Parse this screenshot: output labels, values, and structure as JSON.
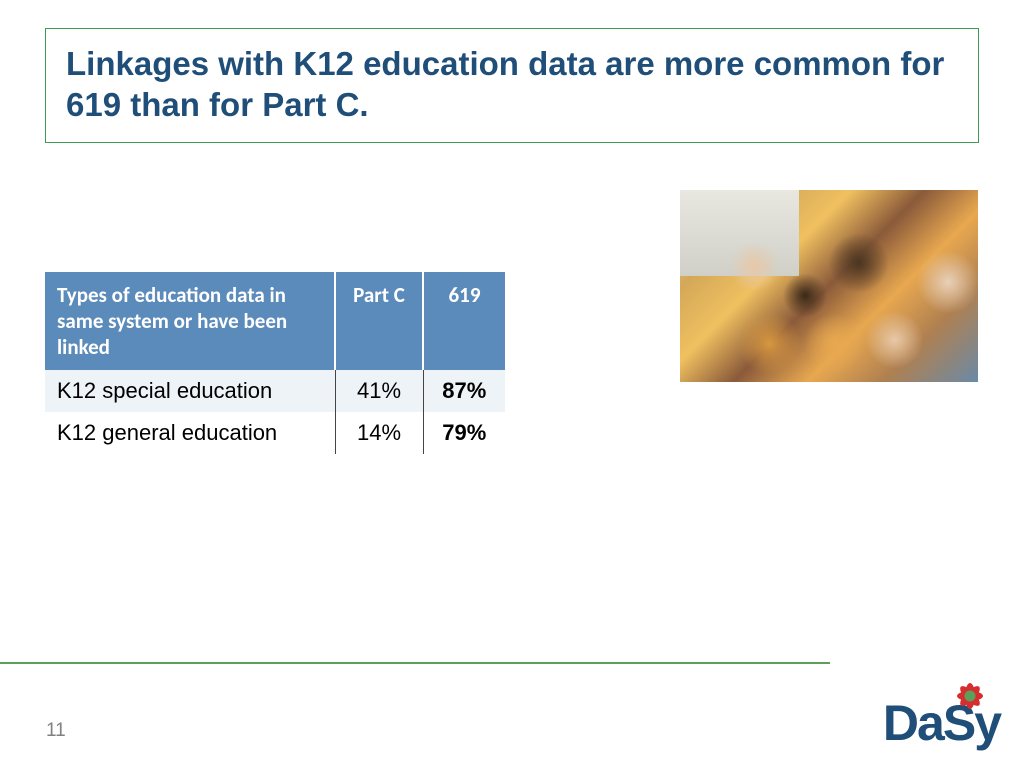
{
  "title": "Linkages with K12 education data are more common for 619 than for Part C.",
  "table": {
    "columns": [
      "Types of education data in same system or have been linked",
      "Part C",
      "619"
    ],
    "rows": [
      {
        "label": "K12 special education",
        "partC": "41%",
        "s619": "87%"
      },
      {
        "label": "K12 general education",
        "partC": "14%",
        "s619": "79%"
      }
    ],
    "header_bg": "#5b8bba",
    "header_fg": "#ffffff",
    "alt_row_bg": "#eef3f8",
    "cell_border": "#444444"
  },
  "page_number": "11",
  "logo": {
    "text_parts": [
      "D",
      "a",
      "S",
      "y"
    ],
    "text_color": "#1f4e79",
    "flower_petal_color": "#d62e2e",
    "flower_center_color": "#5aa05a"
  },
  "accent_green": "#5aa05a",
  "title_border": "#3d9b52",
  "title_color": "#1f4e79"
}
